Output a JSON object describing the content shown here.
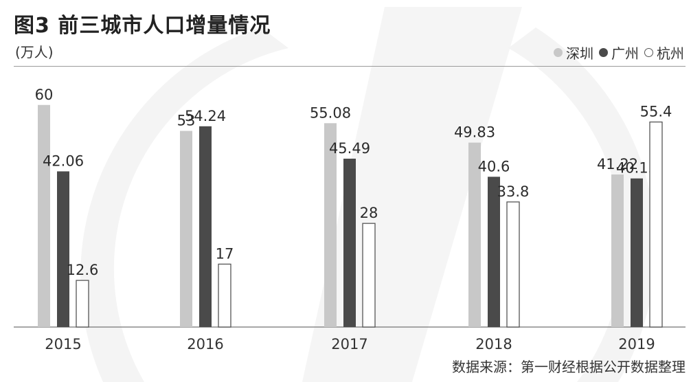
{
  "header": {
    "title": "图3 前三城市人口增量情况",
    "unit": "(万人)"
  },
  "legend": [
    {
      "label": "深圳",
      "color": "#c8c8c8"
    },
    {
      "label": "广州",
      "color": "#4a4a4a"
    },
    {
      "label": "杭州",
      "color": "#ffffff"
    }
  ],
  "source": "数据来源：第一财经根据公开数据整理",
  "chart_data": {
    "type": "bar",
    "categories": [
      "2015",
      "2016",
      "2017",
      "2018",
      "2019"
    ],
    "series": [
      {
        "name": "深圳",
        "values": [
          60,
          53,
          55.08,
          49.83,
          41.22
        ],
        "labels": [
          "60",
          "53",
          "55.08",
          "49.83",
          "41.22"
        ],
        "color": "#c8c8c8"
      },
      {
        "name": "广州",
        "values": [
          42.06,
          54.24,
          45.49,
          40.6,
          40.15
        ],
        "labels": [
          "42.06",
          "54.24",
          "45.49",
          "40.6",
          "40.15"
        ],
        "color": "#4a4a4a"
      },
      {
        "name": "杭州",
        "values": [
          12.6,
          17,
          28,
          33.8,
          55.4
        ],
        "labels": [
          "12.6",
          "17",
          "28",
          "33.8",
          "55.4"
        ],
        "color": "#ffffff"
      }
    ],
    "ylim": [
      0,
      62
    ],
    "grid": false,
    "legend_position": "top-right"
  }
}
